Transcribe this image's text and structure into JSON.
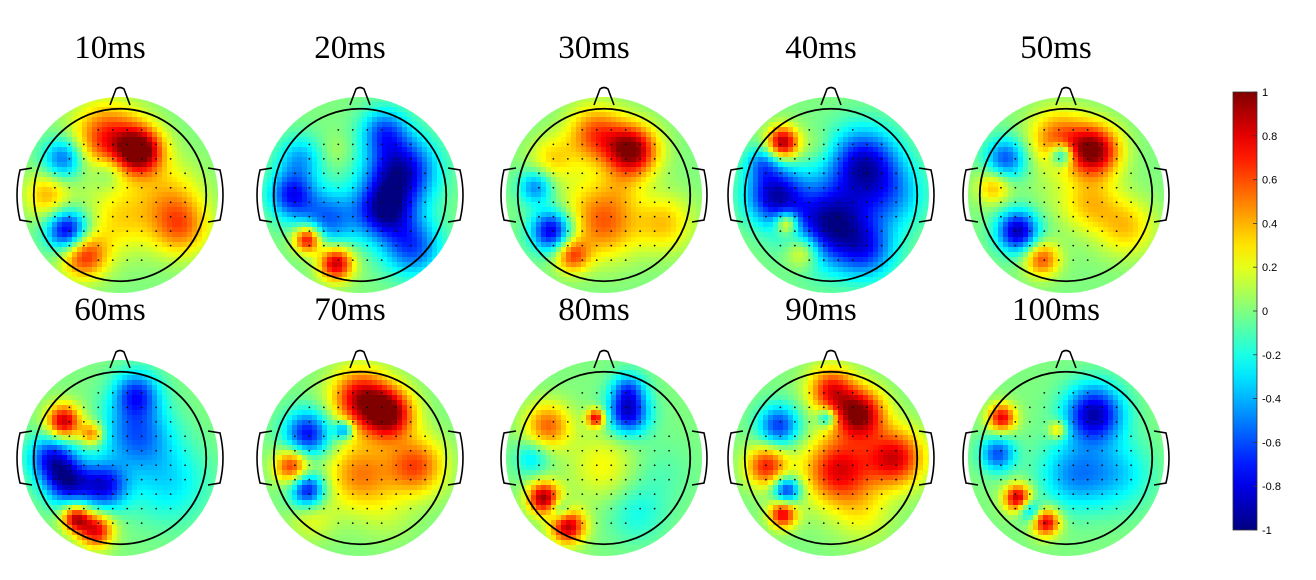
{
  "chart_data": {
    "type": "heatmap",
    "panels": [
      {
        "title": "10ms",
        "blobs": [
          [
            0.25,
            -0.55,
            0.98,
            0.2
          ],
          [
            -0.15,
            -0.7,
            0.7,
            0.3
          ],
          [
            -0.7,
            -0.45,
            -0.6,
            0.18
          ],
          [
            -0.65,
            0.45,
            -0.9,
            0.18
          ],
          [
            -0.45,
            0.75,
            0.7,
            0.2
          ],
          [
            0.75,
            0.4,
            0.5,
            0.25
          ],
          [
            0.6,
            0.0,
            0.3,
            0.3
          ],
          [
            -0.15,
            -0.3,
            -0.25,
            0.15
          ],
          [
            -0.9,
            0.0,
            0.4,
            0.2
          ],
          [
            0.0,
            0.3,
            0.3,
            0.3
          ]
        ]
      },
      {
        "title": "20ms",
        "blobs": [
          [
            0.5,
            -0.3,
            -0.9,
            0.3
          ],
          [
            0.3,
            0.2,
            -0.85,
            0.25
          ],
          [
            -0.85,
            0.0,
            -0.7,
            0.2
          ],
          [
            -0.4,
            0.3,
            -0.55,
            0.25
          ],
          [
            -0.65,
            0.55,
            0.9,
            0.12
          ],
          [
            -0.3,
            0.85,
            0.9,
            0.15
          ],
          [
            -0.3,
            -0.55,
            0.1,
            0.15
          ],
          [
            -0.75,
            -0.45,
            -0.4,
            0.2
          ],
          [
            0.65,
            0.65,
            -0.6,
            0.25
          ],
          [
            0.3,
            -0.8,
            -0.5,
            0.2
          ]
        ]
      },
      {
        "title": "30ms",
        "blobs": [
          [
            0.35,
            -0.55,
            0.98,
            0.22
          ],
          [
            -0.1,
            -0.75,
            0.6,
            0.25
          ],
          [
            -0.65,
            -0.45,
            0.3,
            0.2
          ],
          [
            -0.65,
            0.45,
            -0.85,
            0.18
          ],
          [
            -0.4,
            0.75,
            0.6,
            0.15
          ],
          [
            0.0,
            0.35,
            0.55,
            0.3
          ],
          [
            0.75,
            0.35,
            0.35,
            0.25
          ],
          [
            -0.3,
            0.0,
            0.1,
            0.25
          ],
          [
            0.2,
            -0.1,
            0.15,
            0.2
          ],
          [
            -0.85,
            -0.1,
            -0.5,
            0.15
          ],
          [
            0.55,
            0.8,
            0.0,
            0.2
          ]
        ]
      },
      {
        "title": "40ms",
        "blobs": [
          [
            -0.6,
            -0.65,
            0.95,
            0.14
          ],
          [
            -0.55,
            0.35,
            0.65,
            0.1
          ],
          [
            -0.35,
            0.7,
            0.45,
            0.15
          ],
          [
            0.0,
            0.35,
            -0.95,
            0.35
          ],
          [
            0.4,
            -0.4,
            -0.8,
            0.3
          ],
          [
            -0.7,
            0.0,
            -0.85,
            0.25
          ],
          [
            -0.15,
            -0.6,
            0.1,
            0.15
          ],
          [
            0.75,
            0.0,
            -0.4,
            0.3
          ],
          [
            0.45,
            0.7,
            -0.5,
            0.25
          ],
          [
            -0.85,
            -0.4,
            -0.4,
            0.15
          ]
        ]
      },
      {
        "title": "50ms",
        "blobs": [
          [
            0.35,
            -0.55,
            0.98,
            0.22
          ],
          [
            -0.1,
            -0.7,
            0.55,
            0.25
          ],
          [
            -0.05,
            -0.5,
            -0.7,
            0.1
          ],
          [
            -0.75,
            -0.45,
            -0.6,
            0.18
          ],
          [
            -0.6,
            0.45,
            -0.9,
            0.18
          ],
          [
            -0.3,
            0.8,
            0.6,
            0.15
          ],
          [
            0.3,
            0.1,
            0.35,
            0.25
          ],
          [
            0.75,
            0.4,
            0.35,
            0.25
          ],
          [
            -0.2,
            0.0,
            0.05,
            0.25
          ],
          [
            -0.9,
            -0.1,
            0.4,
            0.15
          ]
        ]
      },
      {
        "title": "60ms",
        "blobs": [
          [
            -0.7,
            -0.45,
            0.9,
            0.15
          ],
          [
            -0.35,
            -0.3,
            0.55,
            0.1
          ],
          [
            0.2,
            -0.3,
            -0.55,
            0.3
          ],
          [
            -0.65,
            0.3,
            -0.8,
            0.2
          ],
          [
            -0.2,
            0.35,
            -0.75,
            0.2
          ],
          [
            -0.55,
            0.75,
            0.85,
            0.12
          ],
          [
            -0.3,
            0.9,
            0.8,
            0.15
          ],
          [
            0.6,
            0.3,
            -0.3,
            0.35
          ],
          [
            -0.85,
            0.0,
            -0.7,
            0.2
          ],
          [
            0.2,
            -0.8,
            -0.6,
            0.2
          ]
        ]
      },
      {
        "title": "70ms",
        "blobs": [
          [
            0.35,
            -0.55,
            0.98,
            0.22
          ],
          [
            0.0,
            -0.75,
            0.8,
            0.25
          ],
          [
            -0.2,
            -0.35,
            -0.6,
            0.08
          ],
          [
            -0.65,
            -0.3,
            -0.75,
            0.2
          ],
          [
            -0.65,
            0.4,
            -0.8,
            0.15
          ],
          [
            -0.85,
            0.1,
            0.7,
            0.15
          ],
          [
            0.0,
            0.2,
            0.5,
            0.3
          ],
          [
            0.7,
            0.1,
            0.6,
            0.25
          ],
          [
            0.35,
            0.7,
            0.1,
            0.25
          ],
          [
            -0.6,
            0.75,
            0.2,
            0.2
          ]
        ]
      },
      {
        "title": "80ms",
        "blobs": [
          [
            0.3,
            -0.55,
            -0.8,
            0.18
          ],
          [
            -0.1,
            -0.5,
            0.8,
            0.08
          ],
          [
            -0.7,
            -0.4,
            0.55,
            0.2
          ],
          [
            -0.75,
            0.5,
            0.95,
            0.14
          ],
          [
            -0.45,
            0.85,
            0.9,
            0.15
          ],
          [
            -0.55,
            0.65,
            -0.4,
            0.1
          ],
          [
            0.65,
            0.2,
            -0.1,
            0.3
          ],
          [
            0.0,
            0.1,
            0.25,
            0.3
          ],
          [
            0.4,
            0.7,
            -0.2,
            0.25
          ],
          [
            -0.9,
            0.0,
            -0.3,
            0.15
          ],
          [
            0.3,
            -0.85,
            -0.5,
            0.15
          ]
        ]
      },
      {
        "title": "90ms",
        "blobs": [
          [
            0.35,
            -0.55,
            0.98,
            0.22
          ],
          [
            -0.05,
            -0.5,
            -0.55,
            0.08
          ],
          [
            -0.65,
            -0.4,
            -0.65,
            0.18
          ],
          [
            -0.55,
            0.4,
            -0.75,
            0.12
          ],
          [
            -0.6,
            0.7,
            0.8,
            0.12
          ],
          [
            0.1,
            0.15,
            0.8,
            0.3
          ],
          [
            0.8,
            0.0,
            0.8,
            0.25
          ],
          [
            -0.8,
            0.1,
            0.7,
            0.18
          ],
          [
            0.4,
            0.7,
            0.2,
            0.25
          ],
          [
            0.0,
            -0.85,
            0.7,
            0.2
          ]
        ]
      },
      {
        "title": "100ms",
        "blobs": [
          [
            0.35,
            -0.55,
            -0.9,
            0.25
          ],
          [
            -0.1,
            -0.35,
            0.45,
            0.08
          ],
          [
            -0.8,
            -0.5,
            0.8,
            0.12
          ],
          [
            -0.6,
            0.5,
            0.9,
            0.12
          ],
          [
            -0.25,
            0.8,
            0.85,
            0.12
          ],
          [
            -0.45,
            0.65,
            -0.5,
            0.1
          ],
          [
            0.1,
            0.2,
            -0.45,
            0.3
          ],
          [
            0.65,
            0.2,
            -0.3,
            0.3
          ],
          [
            -0.85,
            -0.05,
            -0.6,
            0.15
          ],
          [
            0.4,
            0.75,
            0.0,
            0.25
          ]
        ]
      }
    ],
    "colorbar": {
      "range": [
        -1,
        1
      ],
      "tick_values": [
        1,
        0.8,
        0.6,
        0.4,
        0.2,
        0,
        -0.2,
        -0.4,
        -0.6,
        -0.8,
        -1
      ],
      "tick_labels": [
        "1",
        "0.8",
        "0.6",
        "0.4",
        "0.2",
        "0",
        "-0.2",
        "-0.4",
        "-0.6",
        "-0.8",
        "-1"
      ],
      "colormap": "jet"
    },
    "grid": false
  }
}
